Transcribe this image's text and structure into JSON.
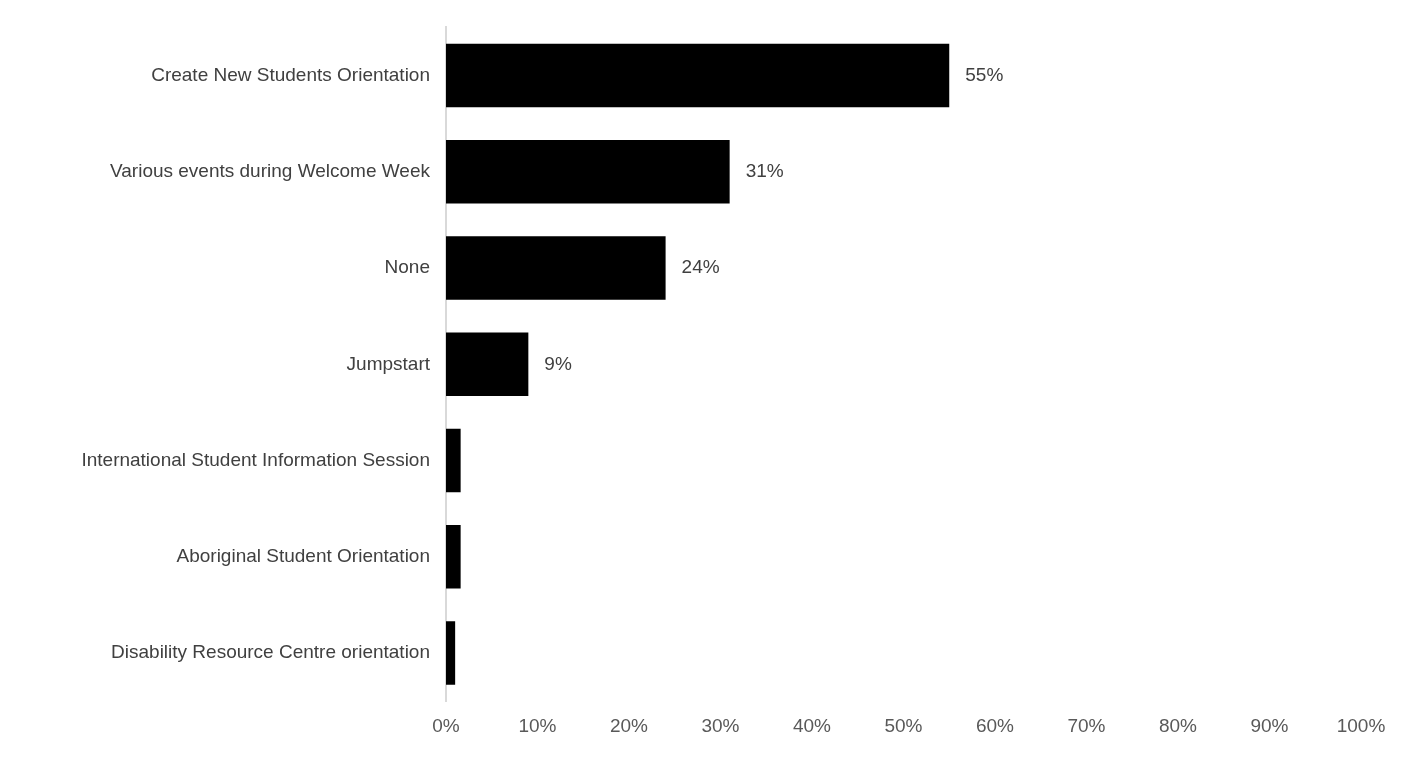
{
  "chart_data": {
    "type": "bar",
    "orientation": "horizontal",
    "categories": [
      "Create New Students Orientation",
      "Various events during Welcome Week",
      "None",
      "Jumpstart",
      "International Student Information Session",
      "Aboriginal Student Orientation",
      "Disability Resource Centre orientation"
    ],
    "values": [
      55,
      31,
      24,
      9,
      1.6,
      1.6,
      1
    ],
    "value_labels": [
      "55%",
      "31%",
      "24%",
      "9%",
      null,
      null,
      null
    ],
    "color": "#000000",
    "xlim": [
      0,
      100
    ],
    "xticks": [
      {
        "value": 0,
        "label": "0%"
      },
      {
        "value": 10,
        "label": "10%"
      },
      {
        "value": 20,
        "label": "20%"
      },
      {
        "value": 30,
        "label": "30%"
      },
      {
        "value": 40,
        "label": "40%"
      },
      {
        "value": 50,
        "label": "50%"
      },
      {
        "value": 60,
        "label": "60%"
      },
      {
        "value": 70,
        "label": "70%"
      },
      {
        "value": 80,
        "label": "80%"
      },
      {
        "value": 90,
        "label": "90%"
      },
      {
        "value": 100,
        "label": "100%"
      }
    ],
    "grid": false,
    "legend": false
  }
}
